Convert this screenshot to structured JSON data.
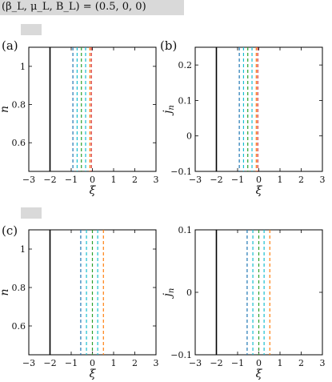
{
  "header": {
    "title": "(β_L, μ_L, B_L) = (0.5, 0, 0)"
  },
  "colors": {
    "black": "#000000",
    "blue": "#1f77b4",
    "teal": "#17becf",
    "green": "#2ca02c",
    "orange": "#ff7f0e",
    "red": "#d62728",
    "gridline": "#000000"
  },
  "chart_data": [
    {
      "type": "line",
      "panel_label": "(a)",
      "xlabel": "ξ",
      "ylabel": "n",
      "xlim": [
        -3,
        3
      ],
      "ylim": [
        0.45,
        1.1
      ],
      "xticks": [
        -3,
        -2,
        -1,
        0,
        1,
        2,
        3
      ],
      "yticks": [
        0.6,
        0.8,
        1
      ],
      "ytick_labels": [
        "0.6",
        "0.8",
        "1"
      ],
      "grid": false,
      "lines": [
        {
          "x": -2.0,
          "color": "black",
          "style": "solid"
        },
        {
          "x": -0.92,
          "color": "blue",
          "style": "dashed"
        },
        {
          "x": -0.72,
          "color": "teal",
          "style": "dashed"
        },
        {
          "x": -0.52,
          "color": "green",
          "style": "dashed"
        },
        {
          "x": -0.32,
          "color": "teal",
          "style": "dashed"
        },
        {
          "x": -0.12,
          "color": "orange",
          "style": "dashed"
        },
        {
          "x": -0.05,
          "color": "red",
          "style": "dashed"
        }
      ]
    },
    {
      "type": "line",
      "panel_label": "(b)",
      "xlabel": "ξ",
      "ylabel": "j_n",
      "xlim": [
        -3,
        3
      ],
      "ylim": [
        -0.1,
        0.25
      ],
      "xticks": [
        -3,
        -2,
        -1,
        0,
        1,
        2,
        3
      ],
      "yticks": [
        -0.1,
        0,
        0.1,
        0.2
      ],
      "ytick_labels": [
        "−0.1",
        "0",
        "0.1",
        "0.2"
      ],
      "grid": false,
      "lines": [
        {
          "x": -2.0,
          "color": "black",
          "style": "solid"
        },
        {
          "x": -0.92,
          "color": "blue",
          "style": "dashed"
        },
        {
          "x": -0.72,
          "color": "teal",
          "style": "dashed"
        },
        {
          "x": -0.52,
          "color": "green",
          "style": "dashed"
        },
        {
          "x": -0.32,
          "color": "teal",
          "style": "dashed"
        },
        {
          "x": -0.12,
          "color": "orange",
          "style": "dashed"
        },
        {
          "x": -0.05,
          "color": "red",
          "style": "dashed"
        }
      ]
    },
    {
      "type": "line",
      "panel_label": "(c)",
      "xlabel": "ξ",
      "ylabel": "n",
      "xlim": [
        -3,
        3
      ],
      "ylim": [
        0.45,
        1.1
      ],
      "xticks": [
        -3,
        -2,
        -1,
        0,
        1,
        2,
        3
      ],
      "yticks": [
        0.6,
        0.8,
        1
      ],
      "ytick_labels": [
        "0.6",
        "0.8",
        "1"
      ],
      "grid": false,
      "lines": [
        {
          "x": -2.0,
          "color": "black",
          "style": "solid"
        },
        {
          "x": -0.55,
          "color": "blue",
          "style": "dashed"
        },
        {
          "x": -0.28,
          "color": "teal",
          "style": "dashed"
        },
        {
          "x": 0.0,
          "color": "green",
          "style": "dashed"
        },
        {
          "x": 0.25,
          "color": "teal",
          "style": "dashed"
        },
        {
          "x": 0.52,
          "color": "orange",
          "style": "dashed"
        }
      ]
    },
    {
      "type": "line",
      "panel_label": "",
      "xlabel": "ξ",
      "ylabel": "j_n",
      "xlim": [
        -3,
        3
      ],
      "ylim": [
        -0.1,
        0.1
      ],
      "xticks": [
        -3,
        -2,
        -1,
        0,
        1,
        2,
        3
      ],
      "yticks": [
        -0.1,
        0,
        0.1
      ],
      "ytick_labels": [
        "−0.1",
        "0",
        "0.1"
      ],
      "grid": false,
      "lines": [
        {
          "x": -2.0,
          "color": "black",
          "style": "solid"
        },
        {
          "x": -0.55,
          "color": "blue",
          "style": "dashed"
        },
        {
          "x": -0.28,
          "color": "teal",
          "style": "dashed"
        },
        {
          "x": 0.0,
          "color": "green",
          "style": "dashed"
        },
        {
          "x": 0.25,
          "color": "teal",
          "style": "dashed"
        },
        {
          "x": 0.52,
          "color": "orange",
          "style": "dashed"
        }
      ]
    }
  ]
}
